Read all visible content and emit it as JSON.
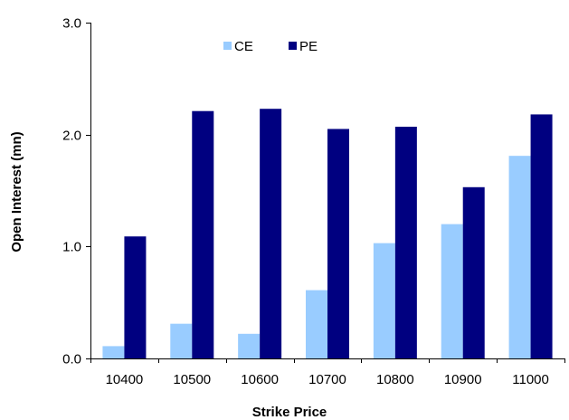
{
  "chart_data": {
    "type": "bar",
    "title": "",
    "xlabel": "Strike Price",
    "ylabel": "Open Interest (mn)",
    "categories": [
      "10400",
      "10500",
      "10600",
      "10700",
      "10800",
      "10900",
      "11000"
    ],
    "ylim": [
      0,
      3.0
    ],
    "yticks": [
      "0.0",
      "1.0",
      "2.0",
      "3.0"
    ],
    "grid": false,
    "legend_position": "top-left",
    "series": [
      {
        "name": "CE",
        "color": "#99ccff",
        "values": [
          0.11,
          0.31,
          0.22,
          0.61,
          1.03,
          1.2,
          1.81
        ]
      },
      {
        "name": "PE",
        "color": "#000080",
        "values": [
          1.09,
          2.21,
          2.23,
          2.05,
          2.07,
          1.53,
          2.18
        ]
      }
    ]
  }
}
